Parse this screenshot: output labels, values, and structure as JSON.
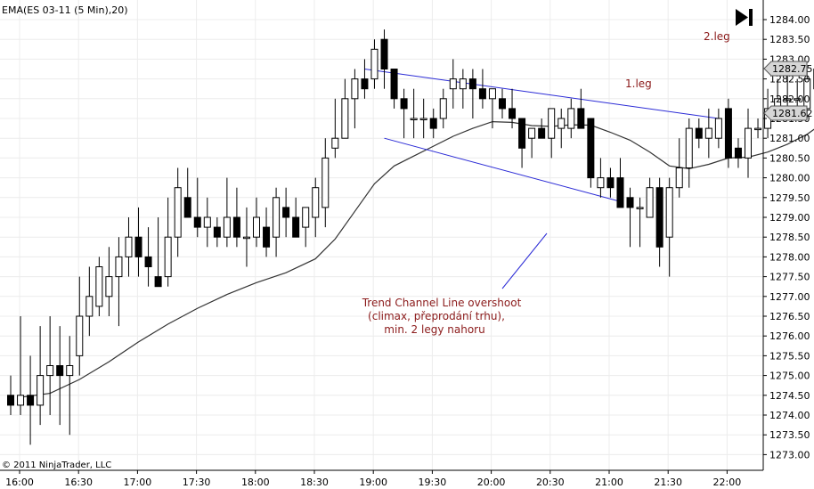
{
  "window": {
    "title": "EMA(ES 03-11 (5 Min),20)",
    "copyright": "© 2011 NinjaTrader, LLC"
  },
  "annotations": {
    "leg1": "1.leg",
    "leg2": "2.leg",
    "overshoot_lines": [
      "Trend Channel Line overshoot",
      "(climax, přeprodání trhu),",
      "min. 2 legy nahoru"
    ]
  },
  "price_markers": {
    "last_price": "1282.75",
    "ema_value": "1281.62"
  },
  "colors": {
    "channel_line": "#2b2bd6",
    "annotation_text": "#8b1a1a",
    "grid": "#ececec",
    "ema_line": "#333333"
  },
  "icons": [
    "play-end-icon"
  ],
  "chart_data": {
    "type": "candlestick",
    "title": "EMA(ES 03-11 (5 Min),20)",
    "ylim": [
      1272.6,
      1284.4
    ],
    "y_ticks": [
      "1284.00",
      "1283.50",
      "1283.00",
      "1282.50",
      "1282.00",
      "1281.50",
      "1281.00",
      "1280.50",
      "1280.00",
      "1279.50",
      "1279.00",
      "1278.50",
      "1278.00",
      "1277.50",
      "1277.00",
      "1276.50",
      "1276.00",
      "1275.50",
      "1275.00",
      "1274.50",
      "1274.00",
      "1273.50",
      "1273.00"
    ],
    "x_ticks": [
      "16:00",
      "16:30",
      "17:00",
      "17:30",
      "18:00",
      "18:30",
      "19:00",
      "19:30",
      "20:00",
      "20:30",
      "21:00",
      "21:30",
      "22:00"
    ],
    "grid": true,
    "bars": [
      {
        "o": 1274.5,
        "h": 1275.0,
        "l": 1274.0,
        "c": 1274.25
      },
      {
        "o": 1274.25,
        "h": 1276.5,
        "l": 1274.0,
        "c": 1274.5
      },
      {
        "o": 1274.5,
        "h": 1275.5,
        "l": 1273.25,
        "c": 1274.25
      },
      {
        "o": 1274.25,
        "h": 1276.25,
        "l": 1273.75,
        "c": 1275.0
      },
      {
        "o": 1275.0,
        "h": 1276.5,
        "l": 1274.0,
        "c": 1275.25
      },
      {
        "o": 1275.25,
        "h": 1276.25,
        "l": 1273.75,
        "c": 1275.0
      },
      {
        "o": 1275.0,
        "h": 1276.0,
        "l": 1273.5,
        "c": 1275.25
      },
      {
        "o": 1275.5,
        "h": 1277.5,
        "l": 1275.0,
        "c": 1276.5
      },
      {
        "o": 1276.5,
        "h": 1277.75,
        "l": 1276.0,
        "c": 1277.0
      },
      {
        "o": 1276.75,
        "h": 1278.0,
        "l": 1276.5,
        "c": 1277.75
      },
      {
        "o": 1277.0,
        "h": 1278.25,
        "l": 1276.5,
        "c": 1277.5
      },
      {
        "o": 1277.5,
        "h": 1278.5,
        "l": 1276.25,
        "c": 1278.0
      },
      {
        "o": 1278.0,
        "h": 1279.0,
        "l": 1277.5,
        "c": 1278.5
      },
      {
        "o": 1278.5,
        "h": 1279.25,
        "l": 1277.5,
        "c": 1278.0
      },
      {
        "o": 1278.0,
        "h": 1278.75,
        "l": 1277.25,
        "c": 1277.75
      },
      {
        "o": 1277.5,
        "h": 1279.0,
        "l": 1277.25,
        "c": 1277.25
      },
      {
        "o": 1277.5,
        "h": 1279.5,
        "l": 1277.25,
        "c": 1278.5
      },
      {
        "o": 1278.5,
        "h": 1280.25,
        "l": 1278.0,
        "c": 1279.75
      },
      {
        "o": 1279.5,
        "h": 1280.25,
        "l": 1279.0,
        "c": 1279.0
      },
      {
        "o": 1279.0,
        "h": 1280.0,
        "l": 1278.5,
        "c": 1278.75
      },
      {
        "o": 1278.75,
        "h": 1279.5,
        "l": 1278.25,
        "c": 1279.0
      },
      {
        "o": 1278.75,
        "h": 1279.0,
        "l": 1278.25,
        "c": 1278.5
      },
      {
        "o": 1278.5,
        "h": 1280.0,
        "l": 1278.25,
        "c": 1279.0
      },
      {
        "o": 1279.0,
        "h": 1279.75,
        "l": 1278.25,
        "c": 1278.5
      },
      {
        "o": 1278.5,
        "h": 1279.25,
        "l": 1277.75,
        "c": 1278.5
      },
      {
        "o": 1278.5,
        "h": 1279.5,
        "l": 1278.25,
        "c": 1279.0
      },
      {
        "o": 1278.75,
        "h": 1279.25,
        "l": 1278.0,
        "c": 1278.25
      },
      {
        "o": 1278.5,
        "h": 1279.75,
        "l": 1278.0,
        "c": 1279.5
      },
      {
        "o": 1279.25,
        "h": 1279.75,
        "l": 1278.5,
        "c": 1279.0
      },
      {
        "o": 1279.0,
        "h": 1279.5,
        "l": 1278.5,
        "c": 1278.5
      },
      {
        "o": 1278.75,
        "h": 1279.25,
        "l": 1278.25,
        "c": 1279.25
      },
      {
        "o": 1279.0,
        "h": 1280.0,
        "l": 1278.5,
        "c": 1279.75
      },
      {
        "o": 1279.25,
        "h": 1281.0,
        "l": 1278.75,
        "c": 1280.5
      },
      {
        "o": 1280.75,
        "h": 1282.0,
        "l": 1280.5,
        "c": 1281.0
      },
      {
        "o": 1281.0,
        "h": 1282.5,
        "l": 1281.0,
        "c": 1282.0
      },
      {
        "o": 1282.0,
        "h": 1282.75,
        "l": 1281.25,
        "c": 1282.5
      },
      {
        "o": 1282.5,
        "h": 1283.0,
        "l": 1282.0,
        "c": 1282.25
      },
      {
        "o": 1282.5,
        "h": 1283.5,
        "l": 1282.25,
        "c": 1283.25
      },
      {
        "o": 1283.5,
        "h": 1283.75,
        "l": 1282.25,
        "c": 1282.75
      },
      {
        "o": 1282.75,
        "h": 1282.75,
        "l": 1281.75,
        "c": 1282.0
      },
      {
        "o": 1282.0,
        "h": 1282.25,
        "l": 1281.0,
        "c": 1281.75
      },
      {
        "o": 1281.5,
        "h": 1282.25,
        "l": 1281.0,
        "c": 1281.5
      },
      {
        "o": 1281.5,
        "h": 1282.0,
        "l": 1281.0,
        "c": 1281.5
      },
      {
        "o": 1281.5,
        "h": 1281.75,
        "l": 1281.0,
        "c": 1281.25
      },
      {
        "o": 1281.5,
        "h": 1282.25,
        "l": 1281.25,
        "c": 1282.0
      },
      {
        "o": 1282.25,
        "h": 1283.0,
        "l": 1281.75,
        "c": 1282.5
      },
      {
        "o": 1282.25,
        "h": 1282.75,
        "l": 1281.75,
        "c": 1282.5
      },
      {
        "o": 1282.5,
        "h": 1282.75,
        "l": 1281.5,
        "c": 1282.25
      },
      {
        "o": 1282.25,
        "h": 1282.75,
        "l": 1281.75,
        "c": 1282.0
      },
      {
        "o": 1282.0,
        "h": 1282.25,
        "l": 1281.25,
        "c": 1282.25
      },
      {
        "o": 1282.0,
        "h": 1282.25,
        "l": 1281.5,
        "c": 1281.75
      },
      {
        "o": 1281.75,
        "h": 1282.25,
        "l": 1281.25,
        "c": 1281.5
      },
      {
        "o": 1281.5,
        "h": 1281.5,
        "l": 1280.25,
        "c": 1280.75
      },
      {
        "o": 1281.0,
        "h": 1281.25,
        "l": 1280.5,
        "c": 1281.25
      },
      {
        "o": 1281.25,
        "h": 1281.5,
        "l": 1281.0,
        "c": 1281.0
      },
      {
        "o": 1281.0,
        "h": 1281.75,
        "l": 1280.5,
        "c": 1281.75
      },
      {
        "o": 1281.25,
        "h": 1281.75,
        "l": 1280.75,
        "c": 1281.5
      },
      {
        "o": 1281.25,
        "h": 1282.0,
        "l": 1281.0,
        "c": 1281.75
      },
      {
        "o": 1281.75,
        "h": 1282.25,
        "l": 1281.25,
        "c": 1281.25
      },
      {
        "o": 1281.5,
        "h": 1281.5,
        "l": 1279.75,
        "c": 1280.0
      },
      {
        "o": 1279.75,
        "h": 1280.5,
        "l": 1279.5,
        "c": 1280.0
      },
      {
        "o": 1280.0,
        "h": 1280.25,
        "l": 1279.5,
        "c": 1279.75
      },
      {
        "o": 1280.0,
        "h": 1280.5,
        "l": 1279.25,
        "c": 1279.25
      },
      {
        "o": 1279.5,
        "h": 1279.75,
        "l": 1278.25,
        "c": 1279.25
      },
      {
        "o": 1279.25,
        "h": 1279.5,
        "l": 1278.25,
        "c": 1279.25
      },
      {
        "o": 1279.0,
        "h": 1280.0,
        "l": 1279.0,
        "c": 1279.75
      },
      {
        "o": 1279.75,
        "h": 1280.0,
        "l": 1277.75,
        "c": 1278.25
      },
      {
        "o": 1278.5,
        "h": 1280.0,
        "l": 1277.5,
        "c": 1279.75
      },
      {
        "o": 1279.75,
        "h": 1281.0,
        "l": 1279.5,
        "c": 1280.25
      },
      {
        "o": 1280.25,
        "h": 1281.5,
        "l": 1279.75,
        "c": 1281.25
      },
      {
        "o": 1281.25,
        "h": 1281.5,
        "l": 1280.75,
        "c": 1281.0
      },
      {
        "o": 1281.0,
        "h": 1281.75,
        "l": 1280.5,
        "c": 1281.25
      },
      {
        "o": 1281.0,
        "h": 1281.75,
        "l": 1280.75,
        "c": 1281.5
      },
      {
        "o": 1281.75,
        "h": 1282.0,
        "l": 1280.25,
        "c": 1280.5
      },
      {
        "o": 1280.75,
        "h": 1281.0,
        "l": 1280.25,
        "c": 1280.5
      },
      {
        "o": 1280.5,
        "h": 1281.75,
        "l": 1280.0,
        "c": 1281.25
      },
      {
        "o": 1281.25,
        "h": 1281.5,
        "l": 1281.0,
        "c": 1281.25
      },
      {
        "o": 1281.25,
        "h": 1282.25,
        "l": 1281.0,
        "c": 1281.75
      },
      {
        "o": 1281.75,
        "h": 1282.5,
        "l": 1281.5,
        "c": 1282.0
      },
      {
        "o": 1282.0,
        "h": 1282.75,
        "l": 1281.5,
        "c": 1282.0
      },
      {
        "o": 1282.0,
        "h": 1282.5,
        "l": 1281.5,
        "c": 1282.0
      },
      {
        "o": 1281.75,
        "h": 1282.75,
        "l": 1281.5,
        "c": 1282.5
      },
      {
        "o": 1282.25,
        "h": 1283.0,
        "l": 1282.0,
        "c": 1282.75
      },
      {
        "o": 1282.5,
        "h": 1283.75,
        "l": 1282.25,
        "c": 1283.5
      },
      {
        "o": 1283.5,
        "h": 1283.75,
        "l": 1282.5,
        "c": 1282.75
      }
    ],
    "ema": [
      [
        1,
        1274.45
      ],
      [
        4,
        1274.55
      ],
      [
        7,
        1274.9
      ],
      [
        10,
        1275.35
      ],
      [
        13,
        1275.85
      ],
      [
        16,
        1276.3
      ],
      [
        19,
        1276.7
      ],
      [
        22,
        1277.05
      ],
      [
        25,
        1277.35
      ],
      [
        28,
        1277.6
      ],
      [
        31,
        1277.95
      ],
      [
        33,
        1278.45
      ],
      [
        35,
        1279.15
      ],
      [
        37,
        1279.85
      ],
      [
        39,
        1280.3
      ],
      [
        41,
        1280.55
      ],
      [
        43,
        1280.8
      ],
      [
        45,
        1281.05
      ],
      [
        47,
        1281.25
      ],
      [
        49,
        1281.42
      ],
      [
        51,
        1281.4
      ],
      [
        53,
        1281.32
      ],
      [
        55,
        1281.3
      ],
      [
        57,
        1281.34
      ],
      [
        59,
        1281.33
      ],
      [
        61,
        1281.15
      ],
      [
        63,
        1280.95
      ],
      [
        65,
        1280.65
      ],
      [
        67,
        1280.3
      ],
      [
        69,
        1280.23
      ],
      [
        71,
        1280.34
      ],
      [
        73,
        1280.5
      ],
      [
        75,
        1280.52
      ],
      [
        77,
        1280.65
      ],
      [
        79,
        1280.85
      ],
      [
        81,
        1281.1
      ],
      [
        83,
        1281.45
      ],
      [
        85,
        1281.62
      ]
    ],
    "channel": {
      "upper": [
        [
          1282.75,
          36
        ],
        [
          1281.5,
          72
        ]
      ],
      "lower": [
        [
          1281.0,
          38
        ],
        [
          1279.4,
          62
        ]
      ]
    }
  }
}
